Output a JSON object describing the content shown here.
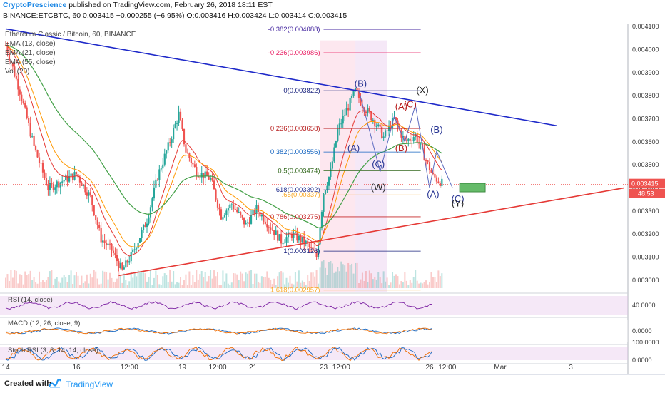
{
  "header": {
    "author": "CryptoPrescience",
    "published_text": "published on TradingView.com, February 26, 2018 18:11 EST",
    "symbol_line": "BINANCE:ETCBTC, 60",
    "last": "0.003415",
    "change": "−0.000255 (−6.95%)",
    "ohlc": "O:0.003416 H:0.003424 L:0.003414 C:0.003415"
  },
  "legend": {
    "title": "Ethereum Classic / Bitcoin, 60, BINANCE",
    "lines": [
      "EMA (13, close)",
      "EMA (21, close)",
      "EMA (55, close)",
      "Vol (20)"
    ]
  },
  "indicators": {
    "rsi": "RSI (14, close)",
    "macd": "MACD (12, 26, close, 9)",
    "stoch": "Stoch RSI (3, 3, 14, 14, close)"
  },
  "footer": {
    "created_with": "Created with",
    "brand": "TradingView"
  },
  "chart_data": {
    "type": "candlestick",
    "title": "Ethereum Classic / Bitcoin, 60, BINANCE",
    "ylim": [
      0.00295,
      0.00411
    ],
    "y_ticks": [
      "0.004100",
      "0.004000",
      "0.003900",
      "0.003800",
      "0.003700",
      "0.003600",
      "0.003500",
      "0.003400",
      "0.003300",
      "0.003200",
      "0.003100",
      "0.003000"
    ],
    "x_ticks": [
      "14",
      "16",
      "12:00",
      "19",
      "12:00",
      "21",
      "23",
      "12:00",
      "26",
      "12:00",
      "Mar",
      "3"
    ],
    "x_days": [
      14,
      16,
      17.5,
      19,
      20,
      21,
      23,
      23.5,
      26,
      26.5,
      28,
      30
    ],
    "last_price": "0.003415",
    "countdown": "48:53",
    "price_path": [
      [
        14.0,
        0.00402
      ],
      [
        14.4,
        0.00382
      ],
      [
        14.8,
        0.00358
      ],
      [
        15.2,
        0.0034
      ],
      [
        15.6,
        0.00343
      ],
      [
        16.0,
        0.00346
      ],
      [
        16.4,
        0.00336
      ],
      [
        16.7,
        0.00318
      ],
      [
        17.0,
        0.00313
      ],
      [
        17.3,
        0.00304
      ],
      [
        17.6,
        0.00312
      ],
      [
        18.0,
        0.00326
      ],
      [
        18.3,
        0.00345
      ],
      [
        18.6,
        0.00358
      ],
      [
        18.9,
        0.00372
      ],
      [
        19.1,
        0.00356
      ],
      [
        19.4,
        0.00347
      ],
      [
        19.8,
        0.00344
      ],
      [
        20.1,
        0.00328
      ],
      [
        20.4,
        0.00333
      ],
      [
        20.8,
        0.00324
      ],
      [
        21.1,
        0.00331
      ],
      [
        21.5,
        0.00323
      ],
      [
        21.8,
        0.00317
      ],
      [
        22.1,
        0.0032
      ],
      [
        22.5,
        0.00316
      ],
      [
        22.8,
        0.0031
      ],
      [
        23.0,
        0.00338
      ],
      [
        23.2,
        0.00347
      ],
      [
        23.4,
        0.00365
      ],
      [
        23.6,
        0.00372
      ],
      [
        23.9,
        0.00382
      ],
      [
        24.1,
        0.00376
      ],
      [
        24.4,
        0.0037
      ],
      [
        24.7,
        0.00362
      ],
      [
        25.0,
        0.0037
      ],
      [
        25.3,
        0.0036
      ],
      [
        25.6,
        0.00363
      ],
      [
        25.9,
        0.00352
      ],
      [
        26.1,
        0.00345
      ],
      [
        26.4,
        0.003415
      ]
    ],
    "fib_levels": [
      {
        "label": "-0.382(0.004088)",
        "value": 0.004088,
        "color": "#4527a0"
      },
      {
        "label": "-0.236(0.003986)",
        "value": 0.003986,
        "color": "#e91e63"
      },
      {
        "label": "0(0.003822)",
        "value": 0.003822,
        "color": "#1a237e"
      },
      {
        "label": "0.236(0.003658)",
        "value": 0.003658,
        "color": "#b71c1c"
      },
      {
        "label": "0.382(0.003556)",
        "value": 0.003556,
        "color": "#1565c0"
      },
      {
        "label": "0.5(0.003474)",
        "value": 0.003474,
        "color": "#33691e"
      },
      {
        "label": ".618(0.003392)",
        "value": 0.003392,
        "color": "#283593"
      },
      {
        "label": ".65(0.00337)",
        "value": 0.00337,
        "color": "#f9a825"
      },
      {
        "label": "0.786(0.003275)",
        "value": 0.003275,
        "color": "#c62828"
      },
      {
        "label": "1(0.003126)",
        "value": 0.003126,
        "color": "#1a237e"
      },
      {
        "label": "1.618(0.002957)",
        "value": 0.002957,
        "color": "#f9a825"
      }
    ],
    "wave_labels": [
      {
        "text": "(B)",
        "color": "#283593"
      },
      {
        "text": "(A)",
        "color": "#283593"
      },
      {
        "text": "(C)",
        "color": "#283593"
      },
      {
        "text": "(W)",
        "color": "#222222"
      },
      {
        "text": "(A)",
        "color": "#b71c1c"
      },
      {
        "text": "(C)",
        "color": "#b71c1c"
      },
      {
        "text": "(B)",
        "color": "#b71c1c"
      },
      {
        "text": "(X)",
        "color": "#222222"
      },
      {
        "text": "(B)",
        "color": "#283593"
      },
      {
        "text": "(A)",
        "color": "#283593"
      },
      {
        "text": "(C)",
        "color": "#283593"
      },
      {
        "text": "(Y)",
        "color": "#222222"
      }
    ],
    "rsi_ticks": [
      "40.0000"
    ],
    "macd_ticks": [
      "0.0000"
    ],
    "stoch_ticks": [
      "100.0000",
      "0.0000"
    ],
    "colors": {
      "up": "#26a69a",
      "down": "#ef5350",
      "ema13": "#e53935",
      "ema21": "#ff9800",
      "ema55": "#43a047",
      "upper_trend": "#1e29c9",
      "lower_trend": "#e53935",
      "zone": "#66bb6a"
    }
  }
}
